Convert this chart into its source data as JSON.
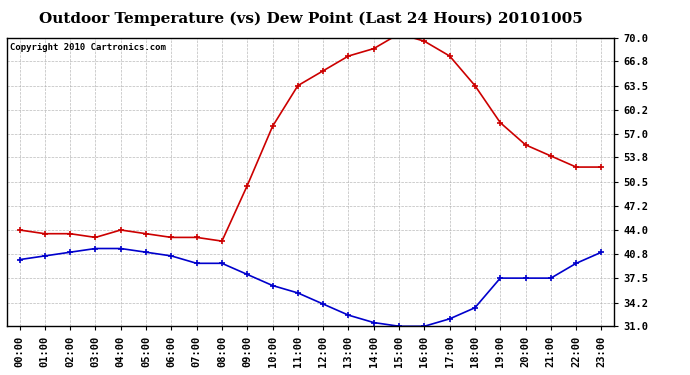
{
  "title": "Outdoor Temperature (vs) Dew Point (Last 24 Hours) 20101005",
  "copyright_text": "Copyright 2010 Cartronics.com",
  "x_labels": [
    "00:00",
    "01:00",
    "02:00",
    "03:00",
    "04:00",
    "05:00",
    "06:00",
    "07:00",
    "08:00",
    "09:00",
    "10:00",
    "11:00",
    "12:00",
    "13:00",
    "14:00",
    "15:00",
    "16:00",
    "17:00",
    "18:00",
    "19:00",
    "20:00",
    "21:00",
    "22:00",
    "23:00"
  ],
  "temp_data": [
    44.0,
    43.5,
    43.5,
    43.0,
    44.0,
    43.5,
    43.0,
    43.0,
    42.5,
    50.0,
    58.0,
    63.5,
    65.5,
    67.5,
    68.5,
    70.5,
    69.5,
    67.5,
    63.5,
    58.5,
    55.5,
    54.0,
    52.5,
    52.5
  ],
  "dew_data": [
    40.0,
    40.5,
    41.0,
    41.5,
    41.5,
    41.0,
    40.5,
    39.5,
    39.5,
    38.0,
    36.5,
    35.5,
    34.0,
    32.5,
    31.5,
    31.0,
    31.0,
    32.0,
    33.5,
    37.5,
    37.5,
    37.5,
    39.5,
    41.0
  ],
  "temp_color": "#cc0000",
  "dew_color": "#0000cc",
  "ylim": [
    31.0,
    70.0
  ],
  "yticks": [
    31.0,
    34.2,
    37.5,
    40.8,
    44.0,
    47.2,
    50.5,
    53.8,
    57.0,
    60.2,
    63.5,
    66.8,
    70.0
  ],
  "background_color": "#ffffff",
  "plot_bg_color": "#ffffff",
  "grid_color": "#aaaaaa",
  "title_fontsize": 11,
  "axis_fontsize": 7.5,
  "copyright_fontsize": 6.5
}
